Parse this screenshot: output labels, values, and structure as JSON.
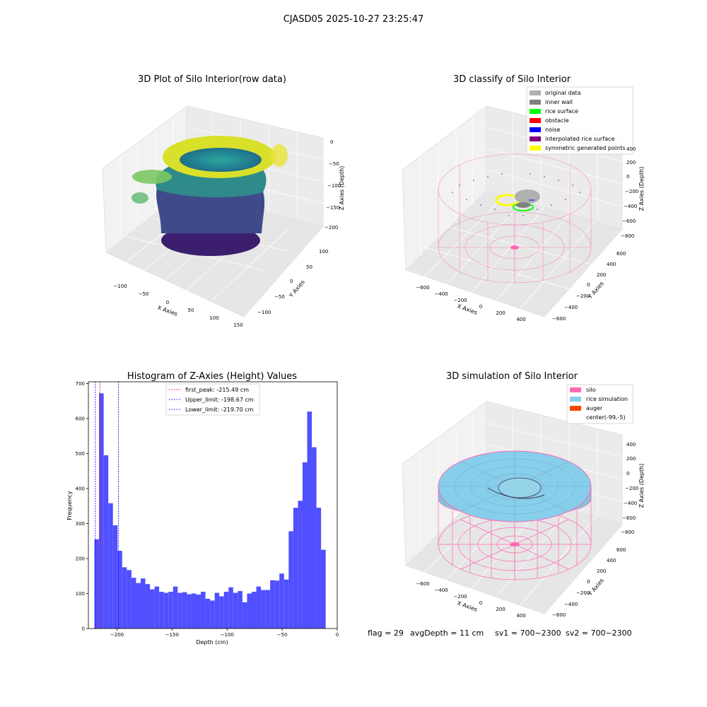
{
  "figure_title": "CJASD05 2025-10-27 23:25:47",
  "panels": {
    "raw": {
      "title": "3D Plot of Silo Interior(row data)",
      "xlabel": "X Axies",
      "ylabel": "Y Axies",
      "zlabel": "Z Axies (Depth)",
      "xticks": [
        "−100",
        "−50",
        "0",
        "50",
        "100",
        "150"
      ],
      "yticks": [
        "100",
        "50",
        "0",
        "−50",
        "−100"
      ],
      "zticks": [
        "0",
        "−50",
        "−100",
        "−150",
        "−200"
      ]
    },
    "classify": {
      "title": "3D classify of Silo Interior",
      "xlabel": "X Axies",
      "ylabel": "Y Axies",
      "zlabel": "Z Axies (Depth)",
      "xticks": [
        "−600",
        "−400",
        "−200",
        "0",
        "200",
        "400"
      ],
      "yticks": [
        "600",
        "400",
        "200",
        "0",
        "−200",
        "−400",
        "−600"
      ],
      "zticks": [
        "400",
        "200",
        "0",
        "−200",
        "−400",
        "−600",
        "−800"
      ],
      "legend": [
        {
          "label": "original data",
          "color": "#b0b0b0"
        },
        {
          "label": "inner wall",
          "color": "#808080"
        },
        {
          "label": "rice surface",
          "color": "#00ff00"
        },
        {
          "label": "obstacle",
          "color": "#ff0000"
        },
        {
          "label": "noise",
          "color": "#0000ff"
        },
        {
          "label": "interpolated rice surface",
          "color": "#800080"
        },
        {
          "label": "symmetric generated points",
          "color": "#ffff00"
        }
      ]
    },
    "histogram": {
      "title": "Histogram of Z-Axies (Height) Values",
      "xlabel": "Depth (cm)",
      "ylabel": "Frequency",
      "legend": [
        {
          "label": "first_peak: -215.49 cm",
          "color": "#ff0000"
        },
        {
          "label": "Upper_limit: -198.67 cm",
          "color": "#0000ff"
        },
        {
          "label": "Lower_limit: -219.70 cm",
          "color": "#0000ff"
        }
      ]
    },
    "simulation": {
      "title": "3D simulation of Silo Interior",
      "xlabel": "X Axies",
      "ylabel": "Y Axies",
      "zlabel": "Z Axies (Depth)",
      "xticks": [
        "−600",
        "−400",
        "−200",
        "0",
        "200",
        "400"
      ],
      "yticks": [
        "600",
        "400",
        "200",
        "0",
        "−200",
        "−400",
        "−600"
      ],
      "zticks": [
        "400",
        "200",
        "0",
        "−200",
        "−400",
        "−600",
        "−800"
      ],
      "legend": [
        {
          "label": "silo",
          "color": "#ff69b4"
        },
        {
          "label": "rice simulation",
          "color": "#87ceeb"
        },
        {
          "label": "auger",
          "color": "#ff4500"
        },
        {
          "label": "center(-99,-5)",
          "color": "#ffffff"
        }
      ]
    }
  },
  "status": {
    "flag": "flag = 29",
    "avg": "avgDepth = 11 cm",
    "sv1": "sv1 = 700~2300",
    "sv2": "sv2 = 700~2300"
  },
  "chart_data": [
    {
      "type": "bar",
      "title": "Histogram of Z-Axies (Height) Values",
      "xlabel": "Depth (cm)",
      "ylabel": "Frequency",
      "xlim": [
        -226,
        0
      ],
      "ylim": [
        0,
        705
      ],
      "xticks": [
        -200,
        -150,
        -100,
        -50,
        0
      ],
      "yticks": [
        0,
        100,
        200,
        300,
        400,
        500,
        600,
        700
      ],
      "bin_start": -220.5,
      "bin_width": 4.2,
      "values": [
        255,
        672,
        495,
        358,
        295,
        222,
        175,
        167,
        145,
        130,
        143,
        127,
        112,
        120,
        105,
        102,
        105,
        120,
        102,
        104,
        98,
        100,
        97,
        105,
        85,
        80,
        102,
        92,
        105,
        118,
        102,
        107,
        75,
        100,
        105,
        120,
        110,
        110,
        138,
        137,
        157,
        140,
        278,
        345,
        365,
        475,
        620,
        518,
        345,
        225
      ],
      "vlines": [
        {
          "label": "first_peak: -215.49 cm",
          "x": -215.49,
          "color": "#ff0000"
        },
        {
          "label": "Upper_limit: -198.67 cm",
          "x": -198.67,
          "color": "#0000ff"
        },
        {
          "label": "Lower_limit: -219.70 cm",
          "x": -219.7,
          "color": "#0000ff"
        }
      ],
      "bar_color": "#5050ff"
    }
  ]
}
